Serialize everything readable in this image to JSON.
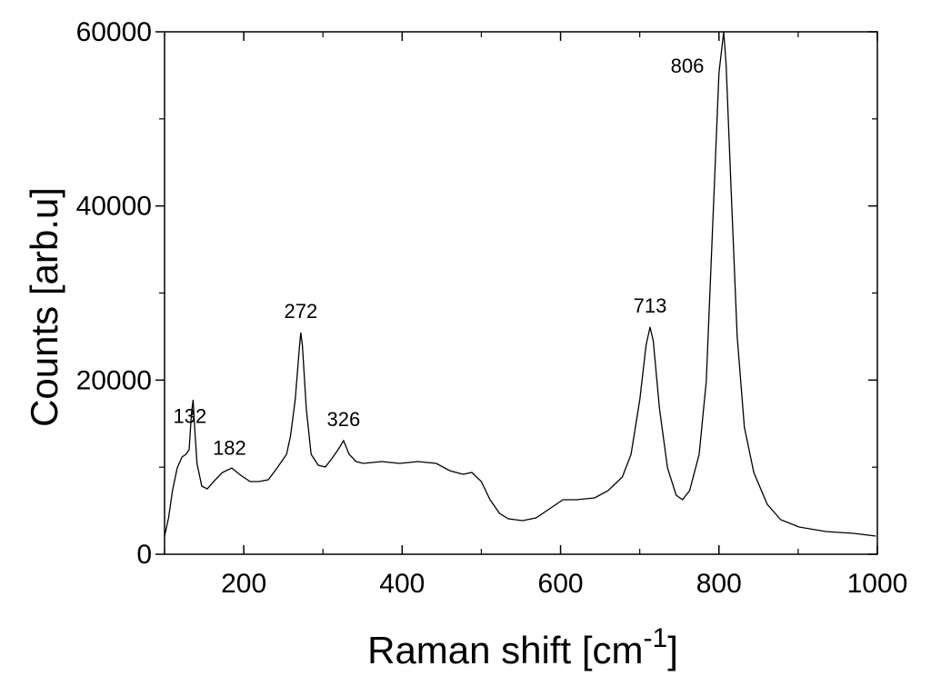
{
  "chart_data": {
    "type": "line",
    "xlabel": [
      "Raman shift [cm",
      "-1",
      "]"
    ],
    "ylabel": "Counts [arb.u]",
    "xlim": [
      100,
      1000
    ],
    "ylim": [
      0,
      60000
    ],
    "xticks": [
      200,
      400,
      600,
      800,
      1000
    ],
    "yticks": [
      0,
      20000,
      40000,
      60000
    ],
    "peaks": [
      132,
      182,
      272,
      326,
      713,
      806
    ],
    "series": [
      {
        "color": "#000000",
        "x": [
          100,
          105,
          110,
          116,
          122,
          127,
          131,
          134,
          136,
          138,
          141,
          147,
          154,
          162,
          173,
          185,
          196,
          208,
          219,
          231,
          242,
          254,
          259,
          265,
          270,
          272,
          274,
          279,
          285,
          294,
          303,
          311,
          319,
          326,
          333,
          342,
          351,
          374,
          397,
          420,
          443,
          460,
          477,
          488,
          500,
          511,
          523,
          534,
          552,
          569,
          586,
          603,
          620,
          643,
          660,
          678,
          689,
          700,
          708,
          713,
          717,
          725,
          735,
          746,
          754,
          763,
          775,
          784,
          792,
          800,
          806,
          809,
          815,
          823,
          832,
          844,
          861,
          878,
          901,
          935,
          970,
          998
        ],
        "values": [
          2090,
          4170,
          7300,
          9900,
          11170,
          11480,
          12000,
          16170,
          17740,
          14600,
          10400,
          7830,
          7500,
          8350,
          9390,
          9900,
          9080,
          8350,
          8350,
          8560,
          9900,
          11480,
          13560,
          17740,
          23480,
          25460,
          24000,
          16700,
          11480,
          10230,
          10020,
          10960,
          12000,
          13040,
          11480,
          10640,
          10430,
          10640,
          10430,
          10640,
          10430,
          9600,
          9180,
          9390,
          8350,
          6260,
          4700,
          4070,
          3860,
          4170,
          5220,
          6260,
          6260,
          6470,
          7300,
          8870,
          11480,
          17740,
          24000,
          26090,
          24520,
          16700,
          9910,
          6780,
          6260,
          7300,
          11480,
          19830,
          37570,
          55300,
          60000,
          56350,
          42780,
          25040,
          14610,
          9390,
          5740,
          3970,
          3130,
          2610,
          2400,
          2090
        ]
      }
    ]
  }
}
